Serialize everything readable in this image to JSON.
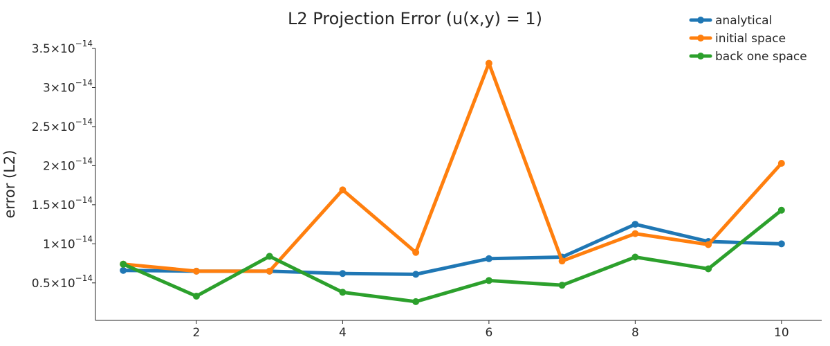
{
  "chart_data": {
    "type": "line",
    "title": "L2 Projection Error (u(x,y) = 1)",
    "xlabel": "",
    "ylabel": "error (L2)",
    "x": [
      1,
      2,
      3,
      4,
      5,
      6,
      7,
      8,
      9,
      10
    ],
    "xlim": [
      0.62,
      10.55
    ],
    "ylim": [
      0.02,
      3.5
    ],
    "y_scale_factor": "×10⁻¹⁴",
    "x_ticks": [
      2,
      4,
      6,
      8,
      10
    ],
    "x_tick_labels": [
      "2",
      "4",
      "6",
      "8",
      "10"
    ],
    "y_ticks": [
      0.5,
      1.0,
      1.5,
      2.0,
      2.5,
      3.0,
      3.5
    ],
    "y_tick_labels": [
      {
        "mantissa": "0.5×10",
        "exp": "−14"
      },
      {
        "mantissa": "1×10",
        "exp": "−14"
      },
      {
        "mantissa": "1.5×10",
        "exp": "−14"
      },
      {
        "mantissa": "2×10",
        "exp": "−14"
      },
      {
        "mantissa": "2.5×10",
        "exp": "−14"
      },
      {
        "mantissa": "3×10",
        "exp": "−14"
      },
      {
        "mantissa": "3.5×10",
        "exp": "−14"
      }
    ],
    "grid": false,
    "legend_position": "top-right",
    "series": [
      {
        "name": "analytical",
        "color": "#1f77b4",
        "values": [
          0.66,
          0.65,
          0.65,
          0.62,
          0.61,
          0.81,
          0.83,
          1.25,
          1.03,
          1.0
        ]
      },
      {
        "name": "initial space",
        "color": "#ff7f0e",
        "values": [
          0.74,
          0.65,
          0.65,
          1.69,
          0.89,
          3.31,
          0.78,
          1.13,
          0.99,
          2.03
        ]
      },
      {
        "name": "back one space",
        "color": "#2ca02c",
        "values": [
          0.74,
          0.33,
          0.84,
          0.38,
          0.26,
          0.53,
          0.47,
          0.83,
          0.68,
          1.43
        ]
      }
    ]
  }
}
